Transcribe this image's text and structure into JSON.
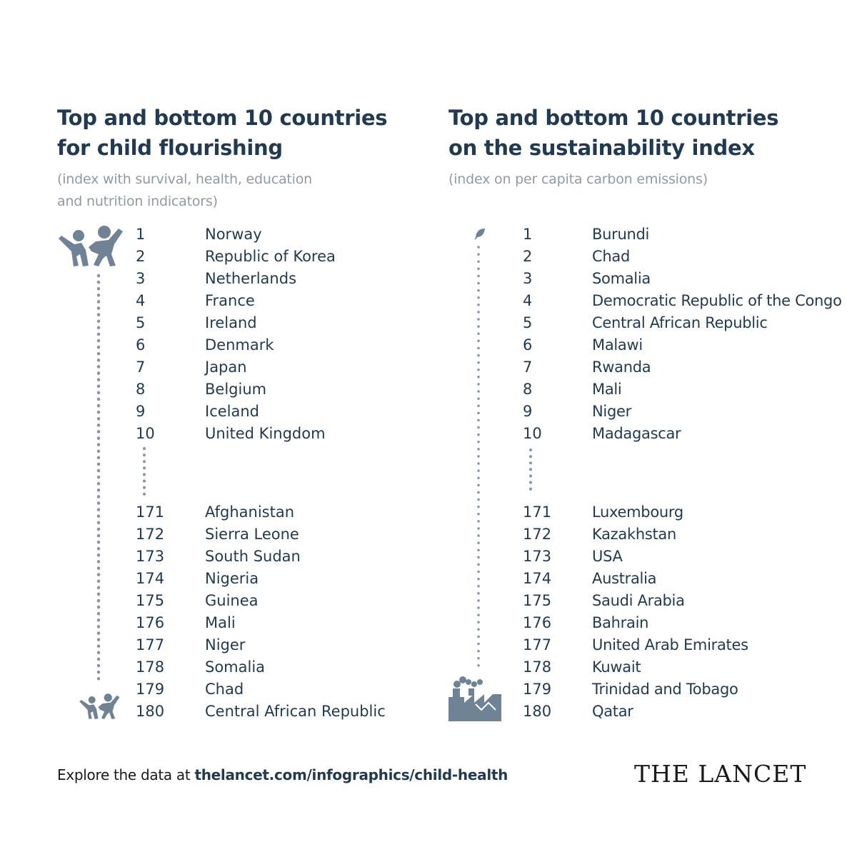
{
  "left": {
    "title_line1": "Top and bottom 10 countries",
    "title_line2": "for child flourishing",
    "subtitle_line1": "(index with survival, health, education",
    "subtitle_line2": "and nutrition indicators)",
    "icons": {
      "top": "children-playing-icon",
      "bottom": "children-playing-icon"
    },
    "top": [
      {
        "rank": "1",
        "country": "Norway"
      },
      {
        "rank": "2",
        "country": "Republic of Korea"
      },
      {
        "rank": "3",
        "country": "Netherlands"
      },
      {
        "rank": "4",
        "country": "France"
      },
      {
        "rank": "5",
        "country": "Ireland"
      },
      {
        "rank": "6",
        "country": "Denmark"
      },
      {
        "rank": "7",
        "country": "Japan"
      },
      {
        "rank": "8",
        "country": "Belgium"
      },
      {
        "rank": "9",
        "country": "Iceland"
      },
      {
        "rank": "10",
        "country": "United Kingdom"
      }
    ],
    "bottom": [
      {
        "rank": "171",
        "country": "Afghanistan"
      },
      {
        "rank": "172",
        "country": "Sierra Leone"
      },
      {
        "rank": "173",
        "country": "South Sudan"
      },
      {
        "rank": "174",
        "country": "Nigeria"
      },
      {
        "rank": "175",
        "country": "Guinea"
      },
      {
        "rank": "176",
        "country": "Mali"
      },
      {
        "rank": "177",
        "country": "Niger"
      },
      {
        "rank": "178",
        "country": "Somalia"
      },
      {
        "rank": "179",
        "country": "Chad"
      },
      {
        "rank": "180",
        "country": "Central African Republic"
      }
    ]
  },
  "right": {
    "title_line1": "Top and bottom 10 countries",
    "title_line2": "on the sustainability index",
    "subtitle_line1": "(index on per capita carbon emissions)",
    "icons": {
      "top": "leaf-icon",
      "bottom": "factory-icon"
    },
    "top": [
      {
        "rank": "1",
        "country": "Burundi"
      },
      {
        "rank": "2",
        "country": "Chad"
      },
      {
        "rank": "3",
        "country": "Somalia"
      },
      {
        "rank": "4",
        "country": "Democratic Republic of the Congo"
      },
      {
        "rank": "5",
        "country": "Central African Republic"
      },
      {
        "rank": "6",
        "country": "Malawi"
      },
      {
        "rank": "7",
        "country": "Rwanda"
      },
      {
        "rank": "8",
        "country": "Mali"
      },
      {
        "rank": "9",
        "country": "Niger"
      },
      {
        "rank": "10",
        "country": "Madagascar"
      }
    ],
    "bottom": [
      {
        "rank": "171",
        "country": "Luxembourg"
      },
      {
        "rank": "172",
        "country": "Kazakhstan"
      },
      {
        "rank": "173",
        "country": "USA"
      },
      {
        "rank": "174",
        "country": "Australia"
      },
      {
        "rank": "175",
        "country": "Saudi Arabia"
      },
      {
        "rank": "176",
        "country": "Bahrain"
      },
      {
        "rank": "177",
        "country": "United Arab Emirates"
      },
      {
        "rank": "178",
        "country": "Kuwait"
      },
      {
        "rank": "179",
        "country": "Trinidad and Tobago"
      },
      {
        "rank": "180",
        "country": "Qatar"
      }
    ]
  },
  "footer": {
    "prefix": "Explore the data at ",
    "url": "thelancet.com/infographics/child-health"
  },
  "logo": "THE LANCET",
  "colors": {
    "text": "#1f3a52",
    "subtitle": "#8e9aa6",
    "icon": "#6f8296",
    "dots": "#8696a8"
  }
}
